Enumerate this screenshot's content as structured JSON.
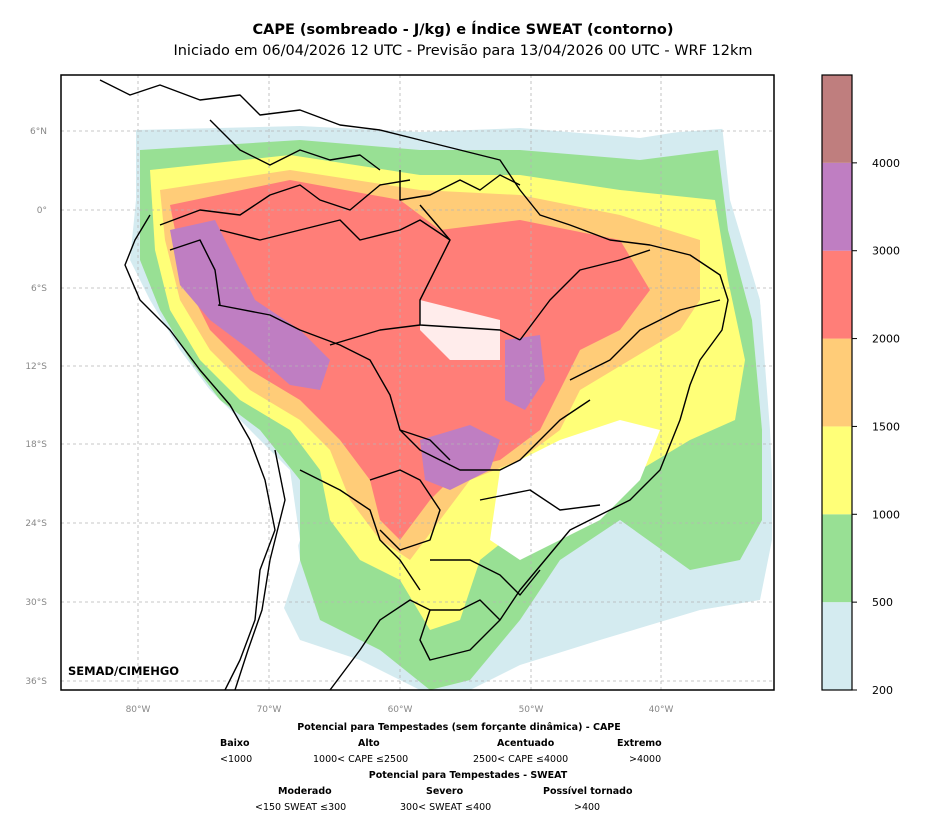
{
  "title": "CAPE (sombreado - J/kg) e Índice SWEAT (contorno)",
  "subtitle": "Iniciado em 06/04/2026 12 UTC - Previsão para 13/04/2026 00 UTC - WRF 12km",
  "credit": "SEMAD/CIMEHGO",
  "axes": {
    "lat_labels": [
      "6°N",
      "0°",
      "6°S",
      "12°S",
      "18°S",
      "24°S",
      "30°S",
      "36°S"
    ],
    "lon_labels": [
      "80°W",
      "70°W",
      "60°W",
      "50°W",
      "40°W"
    ],
    "grid": true
  },
  "colorbar": {
    "ticks": [
      "200",
      "500",
      "1000",
      "1500",
      "2000",
      "3000",
      "4000"
    ],
    "colors": [
      "#d4ebf0",
      "#98e094",
      "#ffff78",
      "#ffcc78",
      "#ff7e78",
      "#bf7ec2",
      "#bf7e7e"
    ]
  },
  "legend": {
    "cape_title": "Potencial para Tempestades (sem forçante dinâmica) - CAPE",
    "cape_classes": [
      {
        "name": "Baixo",
        "range": "<1000"
      },
      {
        "name": "Alto",
        "range": "1000< CAPE ≤2500"
      },
      {
        "name": "Acentuado",
        "range": "2500< CAPE ≤4000"
      },
      {
        "name": "Extremo",
        "range": ">4000"
      }
    ],
    "sweat_title": "Potencial para Tempestades - SWEAT",
    "sweat_classes": [
      {
        "name": "Moderado",
        "range": "<150 SWEAT ≤300"
      },
      {
        "name": "Severo",
        "range": "300< SWEAT ≤400"
      },
      {
        "name": "Possível tornado",
        "range": ">400"
      }
    ]
  }
}
